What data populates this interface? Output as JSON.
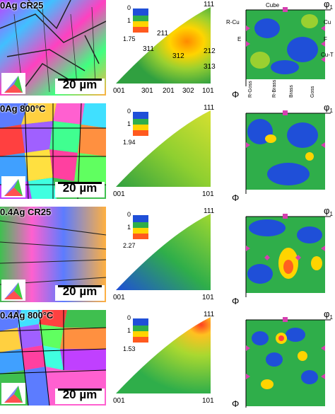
{
  "rows": [
    {
      "label": "0Ag CR25",
      "scale": "20 µm",
      "legend": {
        "max": "0",
        "mid": "1",
        "min": "1.75"
      },
      "ipf_labels": [
        {
          "text": "111"
        },
        {
          "text": "211"
        },
        {
          "text": "311"
        },
        {
          "text": "312"
        },
        {
          "text": "212"
        },
        {
          "text": "313"
        },
        {
          "text": "001"
        },
        {
          "text": "301"
        },
        {
          "text": "201"
        },
        {
          "text": "302"
        },
        {
          "text": "101"
        }
      ],
      "odf_labels": {
        "top": "Cube",
        "left1": "R-Cu",
        "left2": "E",
        "right1": "Cu",
        "right2": "F",
        "right3": "Cu-T",
        "bottom": [
          "R-Goss",
          "R-Brass",
          "Brass",
          "Goss"
        ],
        "phi1": "φ",
        "phi1_sub": "1",
        "Phi": "Φ"
      }
    },
    {
      "label": "0Ag 800°C",
      "scale": "20 µm",
      "legend": {
        "max": "0",
        "mid": "1",
        "min": "1.94"
      },
      "ipf_labels": [
        {
          "text": "111"
        },
        {
          "text": "001"
        },
        {
          "text": "101"
        }
      ],
      "odf_labels": {
        "phi1": "φ",
        "phi1_sub": "1",
        "Phi": "Φ"
      }
    },
    {
      "label": "0.4Ag CR25",
      "scale": "20 µm",
      "legend": {
        "max": "0",
        "mid": "1",
        "min": "2.27"
      },
      "ipf_labels": [
        {
          "text": "111"
        },
        {
          "text": "001"
        },
        {
          "text": "101"
        }
      ],
      "odf_labels": {
        "phi1": "φ",
        "phi1_sub": "1",
        "Phi": "Φ"
      }
    },
    {
      "label": "0.4Ag 800°C",
      "scale": "20 µm",
      "legend": {
        "max": "0",
        "mid": "1",
        "min": "1.53"
      },
      "ipf_labels": [
        {
          "text": "111"
        },
        {
          "text": "001"
        },
        {
          "text": "101"
        }
      ],
      "odf_labels": {
        "phi1": "φ",
        "phi1_sub": "1",
        "Phi": "Φ"
      }
    }
  ],
  "colors": {
    "high": "#ff2020",
    "upper": "#ffe000",
    "mid": "#7fd030",
    "low": "#1e9e3c",
    "base": "#1f4fd8",
    "marker": "#d63fb0"
  }
}
